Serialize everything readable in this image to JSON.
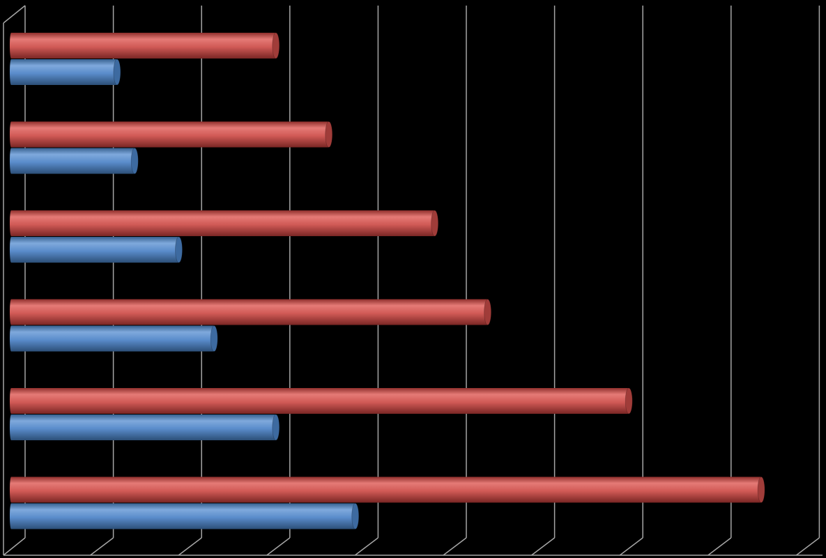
{
  "colors": {
    "background": "#000000",
    "grid": "#a6a6a6",
    "series_red": "#c0504d",
    "series_blue": "#4f81bd"
  },
  "chart_data": {
    "type": "bar",
    "orientation": "horizontal",
    "style": "3d-cylinder",
    "title": "",
    "xlabel": "",
    "ylabel": "",
    "grid": true,
    "legend": "none",
    "xlim": [
      0,
      9
    ],
    "categories": [
      "",
      "",
      "",
      "",
      "",
      ""
    ],
    "series": [
      {
        "color": "#c0504d",
        "values": [
          3.0,
          3.6,
          4.8,
          5.4,
          7.0,
          8.5
        ]
      },
      {
        "color": "#4f81bd",
        "values": [
          1.2,
          1.4,
          1.9,
          2.3,
          3.0,
          3.9
        ]
      }
    ]
  }
}
